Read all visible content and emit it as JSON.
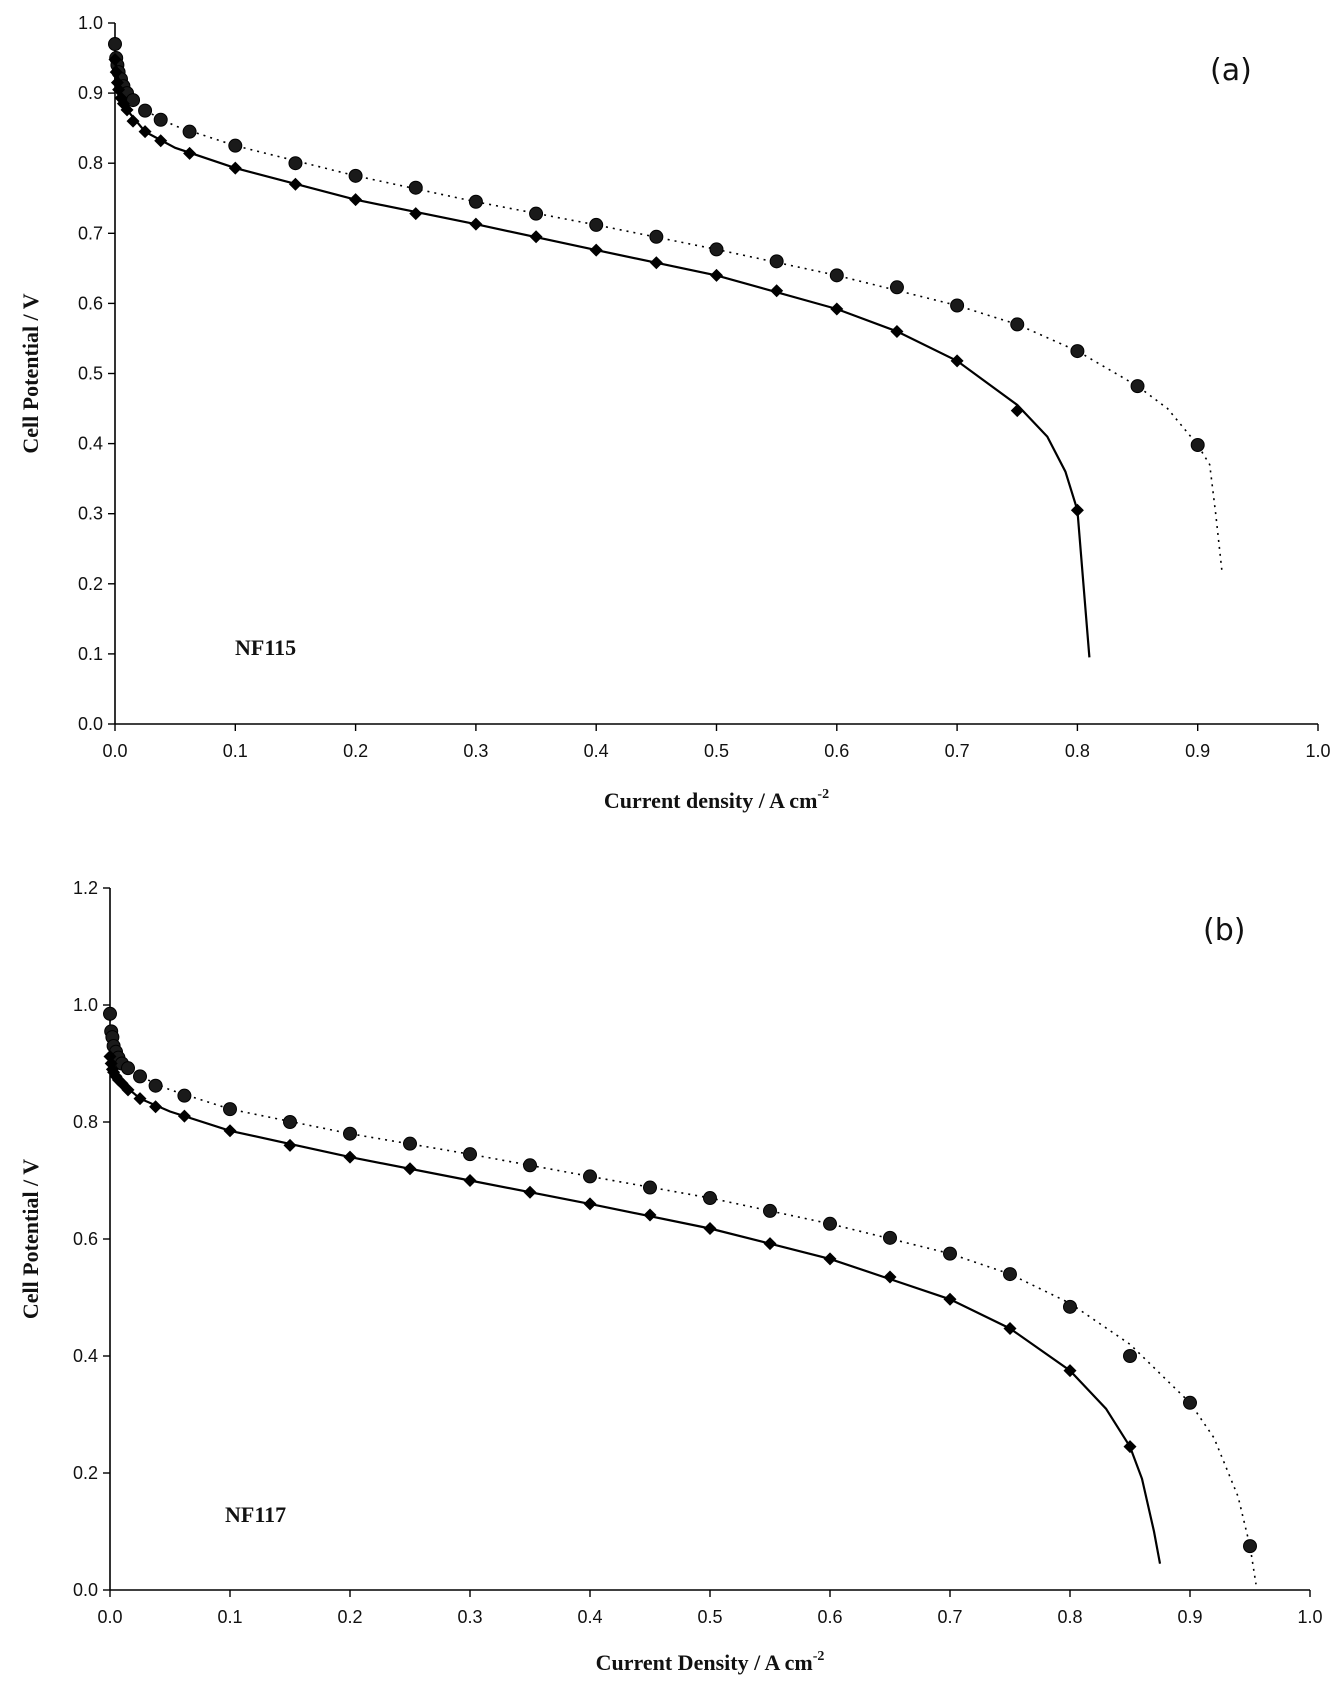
{
  "chart_data": [
    {
      "type": "scatter",
      "panel_label": "(a)",
      "annotation": "NF115",
      "xlabel": "Current density / A cm",
      "xlabel_sup": "-2",
      "ylabel": "Cell Potential / V",
      "xlim": [
        0,
        1.0
      ],
      "ylim": [
        0,
        1.0
      ],
      "x_ticks": [
        "0.0",
        "0.1",
        "0.2",
        "0.3",
        "0.4",
        "0.5",
        "0.6",
        "0.7",
        "0.8",
        "0.9",
        "1.0"
      ],
      "y_ticks": [
        "0.0",
        "0.1",
        "0.2",
        "0.3",
        "0.4",
        "0.5",
        "0.6",
        "0.7",
        "0.8",
        "0.9",
        "1.0"
      ],
      "series": [
        {
          "marker": "circle",
          "line_style": "dotted",
          "points": [
            [
              0,
              0.97
            ],
            [
              0.001,
              0.95
            ],
            [
              0.002,
              0.94
            ],
            [
              0.003,
              0.93
            ],
            [
              0.005,
              0.92
            ],
            [
              0.007,
              0.91
            ],
            [
              0.01,
              0.9
            ],
            [
              0.015,
              0.89
            ],
            [
              0.025,
              0.875
            ],
            [
              0.038,
              0.862
            ],
            [
              0.062,
              0.845
            ],
            [
              0.1,
              0.825
            ],
            [
              0.15,
              0.8
            ],
            [
              0.2,
              0.782
            ],
            [
              0.25,
              0.765
            ],
            [
              0.3,
              0.745
            ],
            [
              0.35,
              0.728
            ],
            [
              0.4,
              0.712
            ],
            [
              0.45,
              0.695
            ],
            [
              0.5,
              0.677
            ],
            [
              0.55,
              0.66
            ],
            [
              0.6,
              0.64
            ],
            [
              0.65,
              0.623
            ],
            [
              0.7,
              0.597
            ],
            [
              0.75,
              0.57
            ],
            [
              0.8,
              0.532
            ],
            [
              0.85,
              0.482
            ],
            [
              0.9,
              0.398
            ]
          ],
          "fit": [
            [
              0,
              0.96
            ],
            [
              0.005,
              0.915
            ],
            [
              0.01,
              0.9
            ],
            [
              0.025,
              0.875
            ],
            [
              0.05,
              0.853
            ],
            [
              0.1,
              0.825
            ],
            [
              0.2,
              0.782
            ],
            [
              0.3,
              0.745
            ],
            [
              0.4,
              0.712
            ],
            [
              0.5,
              0.677
            ],
            [
              0.6,
              0.64
            ],
            [
              0.7,
              0.597
            ],
            [
              0.75,
              0.57
            ],
            [
              0.8,
              0.532
            ],
            [
              0.85,
              0.482
            ],
            [
              0.875,
              0.45
            ],
            [
              0.9,
              0.398
            ],
            [
              0.91,
              0.37
            ],
            [
              0.915,
              0.3
            ],
            [
              0.92,
              0.22
            ]
          ]
        },
        {
          "marker": "diamond",
          "line_style": "solid",
          "points": [
            [
              0,
              0.948
            ],
            [
              0.001,
              0.93
            ],
            [
              0.002,
              0.915
            ],
            [
              0.003,
              0.905
            ],
            [
              0.005,
              0.893
            ],
            [
              0.007,
              0.885
            ],
            [
              0.01,
              0.876
            ],
            [
              0.015,
              0.86
            ],
            [
              0.025,
              0.845
            ],
            [
              0.038,
              0.832
            ],
            [
              0.062,
              0.814
            ],
            [
              0.1,
              0.793
            ],
            [
              0.15,
              0.77
            ],
            [
              0.2,
              0.748
            ],
            [
              0.25,
              0.728
            ],
            [
              0.3,
              0.713
            ],
            [
              0.35,
              0.695
            ],
            [
              0.4,
              0.676
            ],
            [
              0.45,
              0.658
            ],
            [
              0.5,
              0.64
            ],
            [
              0.55,
              0.618
            ],
            [
              0.6,
              0.592
            ],
            [
              0.65,
              0.56
            ],
            [
              0.7,
              0.518
            ],
            [
              0.75,
              0.447
            ],
            [
              0.8,
              0.305
            ]
          ],
          "fit": [
            [
              0,
              0.95
            ],
            [
              0.005,
              0.893
            ],
            [
              0.01,
              0.876
            ],
            [
              0.025,
              0.845
            ],
            [
              0.05,
              0.822
            ],
            [
              0.1,
              0.793
            ],
            [
              0.2,
              0.748
            ],
            [
              0.3,
              0.713
            ],
            [
              0.4,
              0.676
            ],
            [
              0.5,
              0.64
            ],
            [
              0.6,
              0.592
            ],
            [
              0.65,
              0.56
            ],
            [
              0.7,
              0.518
            ],
            [
              0.75,
              0.455
            ],
            [
              0.775,
              0.41
            ],
            [
              0.79,
              0.36
            ],
            [
              0.8,
              0.305
            ],
            [
              0.805,
              0.2
            ],
            [
              0.81,
              0.095
            ]
          ]
        }
      ]
    },
    {
      "type": "scatter",
      "panel_label": "(b)",
      "annotation": "NF117",
      "xlabel": "Current Density / A cm",
      "xlabel_sup": "-2",
      "ylabel": "Cell Potential / V",
      "xlim": [
        0,
        1.0
      ],
      "ylim": [
        0,
        1.2
      ],
      "x_ticks": [
        "0.0",
        "0.1",
        "0.2",
        "0.3",
        "0.4",
        "0.5",
        "0.6",
        "0.7",
        "0.8",
        "0.9",
        "1.0"
      ],
      "y_ticks": [
        "0.0",
        "0.2",
        "0.4",
        "0.6",
        "0.8",
        "1.0",
        "1.2"
      ],
      "series": [
        {
          "marker": "circle",
          "line_style": "dotted",
          "points": [
            [
              0,
              0.985
            ],
            [
              0.001,
              0.955
            ],
            [
              0.002,
              0.945
            ],
            [
              0.003,
              0.93
            ],
            [
              0.005,
              0.92
            ],
            [
              0.007,
              0.91
            ],
            [
              0.01,
              0.9
            ],
            [
              0.015,
              0.892
            ],
            [
              0.025,
              0.878
            ],
            [
              0.038,
              0.862
            ],
            [
              0.062,
              0.845
            ],
            [
              0.1,
              0.822
            ],
            [
              0.15,
              0.8
            ],
            [
              0.2,
              0.78
            ],
            [
              0.25,
              0.763
            ],
            [
              0.3,
              0.745
            ],
            [
              0.35,
              0.726
            ],
            [
              0.4,
              0.707
            ],
            [
              0.45,
              0.688
            ],
            [
              0.5,
              0.67
            ],
            [
              0.55,
              0.648
            ],
            [
              0.6,
              0.626
            ],
            [
              0.65,
              0.602
            ],
            [
              0.7,
              0.575
            ],
            [
              0.75,
              0.54
            ],
            [
              0.8,
              0.484
            ],
            [
              0.85,
              0.4
            ],
            [
              0.9,
              0.32
            ],
            [
              0.95,
              0.075
            ]
          ],
          "fit": [
            [
              0,
              0.975
            ],
            [
              0.005,
              0.92
            ],
            [
              0.01,
              0.9
            ],
            [
              0.025,
              0.878
            ],
            [
              0.05,
              0.855
            ],
            [
              0.1,
              0.822
            ],
            [
              0.2,
              0.78
            ],
            [
              0.3,
              0.745
            ],
            [
              0.4,
              0.707
            ],
            [
              0.5,
              0.67
            ],
            [
              0.6,
              0.626
            ],
            [
              0.7,
              0.575
            ],
            [
              0.75,
              0.54
            ],
            [
              0.8,
              0.49
            ],
            [
              0.85,
              0.42
            ],
            [
              0.9,
              0.32
            ],
            [
              0.92,
              0.26
            ],
            [
              0.94,
              0.16
            ],
            [
              0.95,
              0.075
            ],
            [
              0.955,
              0.01
            ]
          ]
        },
        {
          "marker": "diamond",
          "line_style": "solid",
          "points": [
            [
              0,
              0.912
            ],
            [
              0.001,
              0.9
            ],
            [
              0.002,
              0.89
            ],
            [
              0.003,
              0.885
            ],
            [
              0.005,
              0.878
            ],
            [
              0.007,
              0.872
            ],
            [
              0.01,
              0.866
            ],
            [
              0.015,
              0.855
            ],
            [
              0.025,
              0.84
            ],
            [
              0.038,
              0.826
            ],
            [
              0.062,
              0.81
            ],
            [
              0.1,
              0.785
            ],
            [
              0.15,
              0.76
            ],
            [
              0.2,
              0.74
            ],
            [
              0.25,
              0.72
            ],
            [
              0.3,
              0.7
            ],
            [
              0.35,
              0.68
            ],
            [
              0.4,
              0.66
            ],
            [
              0.45,
              0.641
            ],
            [
              0.5,
              0.618
            ],
            [
              0.55,
              0.592
            ],
            [
              0.6,
              0.566
            ],
            [
              0.65,
              0.535
            ],
            [
              0.7,
              0.497
            ],
            [
              0.75,
              0.447
            ],
            [
              0.8,
              0.375
            ],
            [
              0.85,
              0.245
            ]
          ],
          "fit": [
            [
              0,
              0.915
            ],
            [
              0.005,
              0.878
            ],
            [
              0.01,
              0.866
            ],
            [
              0.025,
              0.84
            ],
            [
              0.05,
              0.818
            ],
            [
              0.1,
              0.785
            ],
            [
              0.2,
              0.74
            ],
            [
              0.3,
              0.7
            ],
            [
              0.4,
              0.66
            ],
            [
              0.5,
              0.618
            ],
            [
              0.6,
              0.566
            ],
            [
              0.7,
              0.497
            ],
            [
              0.75,
              0.447
            ],
            [
              0.8,
              0.375
            ],
            [
              0.83,
              0.31
            ],
            [
              0.85,
              0.245
            ],
            [
              0.86,
              0.19
            ],
            [
              0.87,
              0.1
            ],
            [
              0.875,
              0.045
            ]
          ]
        }
      ]
    }
  ]
}
